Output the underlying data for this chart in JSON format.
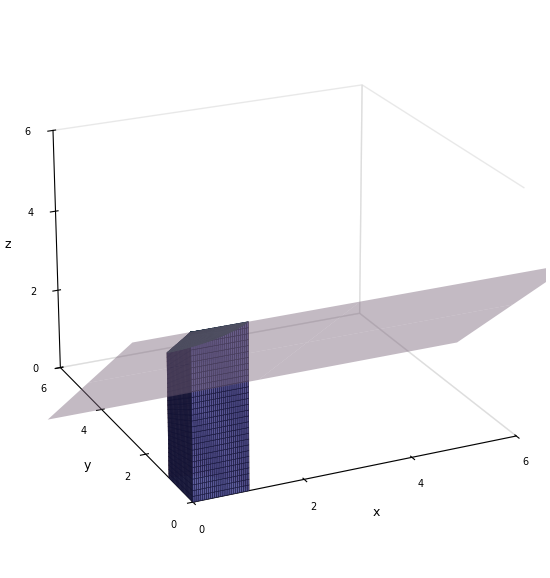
{
  "title": "",
  "xlabel": "x",
  "ylabel": "y",
  "zlabel": "z",
  "xlim": [
    0,
    6
  ],
  "ylim": [
    0,
    6
  ],
  "zlim": [
    0,
    6
  ],
  "plane_color": "#d8b4d8",
  "plane_alpha": 0.45,
  "solid_left_color": "#6666bb",
  "solid_right_color": "#cc8888",
  "solid_top_color": "#aaccdd",
  "background_color": "#ffffff",
  "elev": 22,
  "azim": -115,
  "tick_locs": [
    0,
    2,
    4,
    6
  ]
}
